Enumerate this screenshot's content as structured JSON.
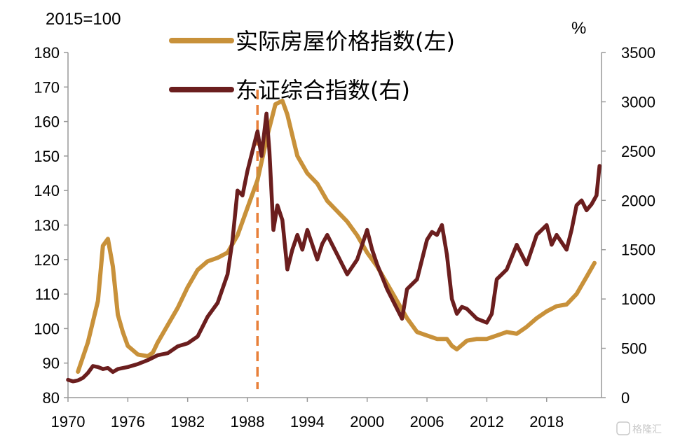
{
  "chart_data": {
    "type": "line",
    "left_unit": "2015=100",
    "right_unit": "%",
    "x_range": [
      1970,
      2023.5
    ],
    "x_ticks": [
      "1970",
      "1976",
      "1982",
      "1988",
      "1994",
      "2000",
      "2006",
      "2012",
      "2018"
    ],
    "y_left": {
      "range": [
        80,
        180
      ],
      "ticks": [
        "80",
        "90",
        "100",
        "110",
        "120",
        "130",
        "140",
        "150",
        "160",
        "170",
        "180"
      ]
    },
    "y_right": {
      "range": [
        0,
        3500
      ],
      "ticks": [
        "0",
        "500",
        "1000",
        "1500",
        "2000",
        "2500",
        "3000",
        "3500"
      ]
    },
    "grid": false,
    "legend_position": "top-center",
    "reference_line": {
      "x": 1989.0,
      "color": "#E8803A",
      "style": "dashed"
    },
    "series": [
      {
        "name": "实际房屋价格指数(左)",
        "axis": "left",
        "color": "#C8913A",
        "points": [
          [
            1971,
            87.5
          ],
          [
            1972,
            96
          ],
          [
            1973,
            108
          ],
          [
            1973.5,
            124
          ],
          [
            1974,
            126
          ],
          [
            1974.5,
            118
          ],
          [
            1975,
            104
          ],
          [
            1975.5,
            99
          ],
          [
            1976,
            95
          ],
          [
            1977,
            92.5
          ],
          [
            1978,
            92
          ],
          [
            1978.5,
            93
          ],
          [
            1979,
            96
          ],
          [
            1980,
            101
          ],
          [
            1981,
            106
          ],
          [
            1982,
            112
          ],
          [
            1983,
            117
          ],
          [
            1984,
            119.5
          ],
          [
            1985,
            120.5
          ],
          [
            1986,
            122
          ],
          [
            1987,
            127
          ],
          [
            1988,
            135
          ],
          [
            1989,
            143
          ],
          [
            1990,
            156
          ],
          [
            1990.8,
            165
          ],
          [
            1991.5,
            166
          ],
          [
            1992,
            162
          ],
          [
            1992.5,
            156
          ],
          [
            1993,
            150
          ],
          [
            1994,
            145
          ],
          [
            1995,
            142
          ],
          [
            1996,
            137
          ],
          [
            1997,
            134
          ],
          [
            1998,
            131
          ],
          [
            1999,
            127
          ],
          [
            2000,
            122
          ],
          [
            2001,
            118
          ],
          [
            2002,
            113
          ],
          [
            2003,
            108
          ],
          [
            2004,
            103
          ],
          [
            2005,
            99
          ],
          [
            2006,
            98
          ],
          [
            2007,
            97
          ],
          [
            2008,
            97
          ],
          [
            2008.5,
            95
          ],
          [
            2009,
            94
          ],
          [
            2010,
            96.5
          ],
          [
            2011,
            97
          ],
          [
            2012,
            97
          ],
          [
            2013,
            98
          ],
          [
            2014,
            99
          ],
          [
            2015,
            98.5
          ],
          [
            2016,
            100.5
          ],
          [
            2017,
            103
          ],
          [
            2018,
            105
          ],
          [
            2019,
            106.5
          ],
          [
            2020,
            107
          ],
          [
            2021,
            110
          ],
          [
            2022,
            115
          ],
          [
            2022.8,
            119
          ]
        ]
      },
      {
        "name": "东证综合指数(右)",
        "axis": "right",
        "color": "#6B1E1E",
        "points": [
          [
            1970,
            180
          ],
          [
            1970.5,
            165
          ],
          [
            1971,
            175
          ],
          [
            1971.5,
            200
          ],
          [
            1972,
            250
          ],
          [
            1972.5,
            320
          ],
          [
            1973,
            310
          ],
          [
            1973.5,
            290
          ],
          [
            1974,
            300
          ],
          [
            1974.5,
            260
          ],
          [
            1975,
            290
          ],
          [
            1976,
            310
          ],
          [
            1977,
            340
          ],
          [
            1978,
            380
          ],
          [
            1979,
            430
          ],
          [
            1980,
            450
          ],
          [
            1981,
            520
          ],
          [
            1982,
            550
          ],
          [
            1983,
            620
          ],
          [
            1984,
            820
          ],
          [
            1985,
            960
          ],
          [
            1986,
            1250
          ],
          [
            1986.5,
            1600
          ],
          [
            1987,
            2100
          ],
          [
            1987.5,
            2050
          ],
          [
            1988,
            2300
          ],
          [
            1988.5,
            2500
          ],
          [
            1989,
            2700
          ],
          [
            1989.4,
            2450
          ],
          [
            1989.9,
            2880
          ],
          [
            1990.2,
            2500
          ],
          [
            1990.6,
            1700
          ],
          [
            1991,
            1950
          ],
          [
            1991.5,
            1800
          ],
          [
            1992,
            1300
          ],
          [
            1992.5,
            1500
          ],
          [
            1993,
            1650
          ],
          [
            1993.5,
            1500
          ],
          [
            1994,
            1700
          ],
          [
            1995,
            1400
          ],
          [
            1995.5,
            1560
          ],
          [
            1996,
            1650
          ],
          [
            1997,
            1450
          ],
          [
            1998,
            1250
          ],
          [
            1999,
            1400
          ],
          [
            2000,
            1700
          ],
          [
            2000.5,
            1500
          ],
          [
            2001,
            1350
          ],
          [
            2002,
            1100
          ],
          [
            2003,
            900
          ],
          [
            2003.5,
            800
          ],
          [
            2004,
            1100
          ],
          [
            2005,
            1200
          ],
          [
            2006,
            1600
          ],
          [
            2006.5,
            1680
          ],
          [
            2007,
            1650
          ],
          [
            2007.5,
            1750
          ],
          [
            2008,
            1450
          ],
          [
            2008.5,
            1000
          ],
          [
            2009,
            850
          ],
          [
            2009.5,
            920
          ],
          [
            2010,
            900
          ],
          [
            2011,
            800
          ],
          [
            2012,
            760
          ],
          [
            2012.5,
            850
          ],
          [
            2013,
            1200
          ],
          [
            2014,
            1300
          ],
          [
            2015,
            1550
          ],
          [
            2016,
            1350
          ],
          [
            2017,
            1650
          ],
          [
            2018,
            1750
          ],
          [
            2018.5,
            1550
          ],
          [
            2019,
            1650
          ],
          [
            2020,
            1500
          ],
          [
            2020.5,
            1700
          ],
          [
            2021,
            1950
          ],
          [
            2021.5,
            2000
          ],
          [
            2022,
            1900
          ],
          [
            2022.5,
            1960
          ],
          [
            2023,
            2050
          ],
          [
            2023.3,
            2350
          ]
        ]
      }
    ]
  },
  "watermark": "格隆汇"
}
